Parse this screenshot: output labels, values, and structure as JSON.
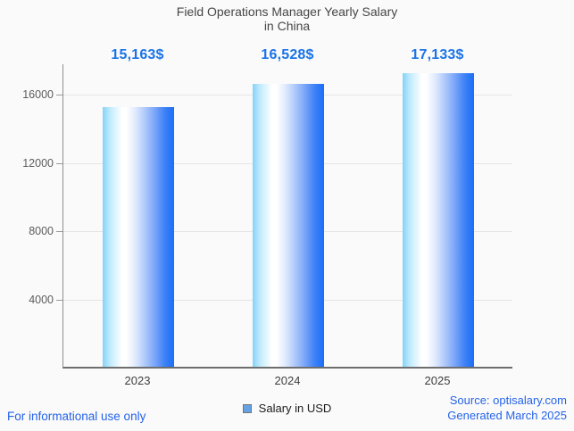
{
  "chart_data": {
    "type": "bar",
    "title": "Field Operations Manager Yearly Salary",
    "subtitle": "in China",
    "categories": [
      "2023",
      "2024",
      "2025"
    ],
    "values": [
      15163,
      16528,
      17133
    ],
    "value_labels": [
      "15,163$",
      "16,528$",
      "17,133$"
    ],
    "series": [
      {
        "name": "Salary in USD",
        "values": [
          15163,
          16528,
          17133
        ]
      }
    ],
    "xlabel": "",
    "ylabel": "",
    "ylim": [
      0,
      17770
    ],
    "yticks": [
      4000,
      8000,
      12000,
      16000
    ],
    "grid": "horizontal",
    "legend_position": "bottom"
  },
  "legend": {
    "label": "Salary in USD",
    "swatch_color": "#64a2e6"
  },
  "colors": {
    "value_label_blue": "#1a73e8",
    "footer_blue": "#2563e8",
    "bar_gradient_light": "#85d2f9",
    "bar_gradient_dark": "#1a6ef8",
    "axis_gray": "#6e6e6e"
  },
  "footer": {
    "disclaimer": "For informational use only",
    "source": "Source: optisalary.com",
    "generated": "Generated March 2025"
  }
}
